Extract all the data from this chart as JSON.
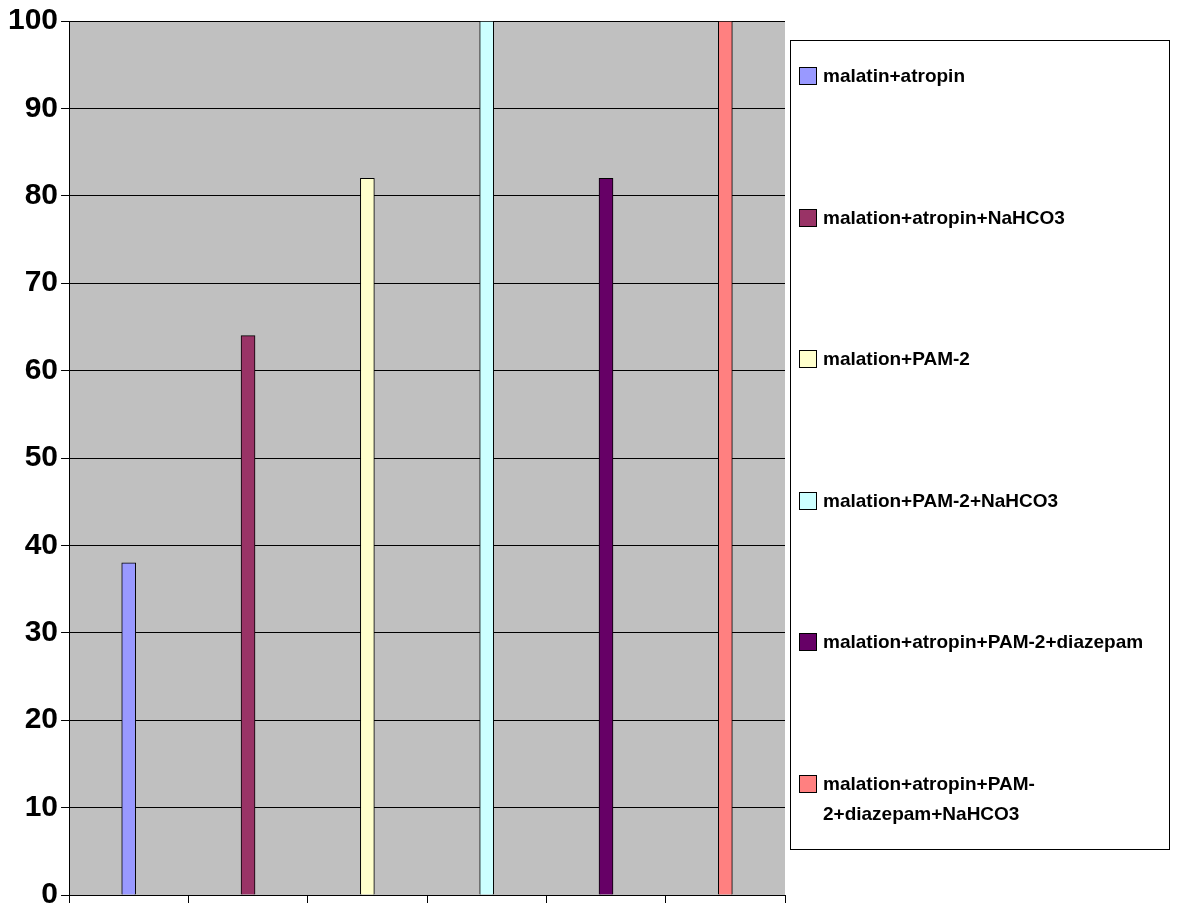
{
  "chart_data": {
    "type": "bar",
    "categories": [
      null,
      null,
      null,
      null,
      null,
      null
    ],
    "series": [
      {
        "name": "malatin+atropin",
        "color": "#9999ff",
        "values": [
          38,
          null,
          null,
          null,
          null,
          null
        ]
      },
      {
        "name": "malation+atropin+NaHCO3",
        "color": "#993366",
        "values": [
          null,
          64,
          null,
          null,
          null,
          null
        ]
      },
      {
        "name": "malation+PAM-2",
        "color": "#ffffcc",
        "values": [
          null,
          null,
          82,
          null,
          null,
          null
        ]
      },
      {
        "name": "malation+PAM-2+NaHCO3",
        "color": "#ccffff",
        "values": [
          null,
          null,
          null,
          100,
          null,
          null
        ]
      },
      {
        "name": "malation+atropin+PAM-2+diazepam",
        "color": "#660066",
        "values": [
          null,
          null,
          null,
          null,
          82,
          null
        ]
      },
      {
        "name": "malation+atropin+PAM-2+diazepam+NaHCO3",
        "color": "#ff8080",
        "values": [
          null,
          null,
          null,
          null,
          null,
          100
        ]
      }
    ],
    "ylim": [
      0,
      100
    ],
    "yticks": [
      0,
      10,
      20,
      30,
      40,
      50,
      60,
      70,
      80,
      90,
      100
    ],
    "grid": "y",
    "legend": "right",
    "tick_labels": "y"
  }
}
